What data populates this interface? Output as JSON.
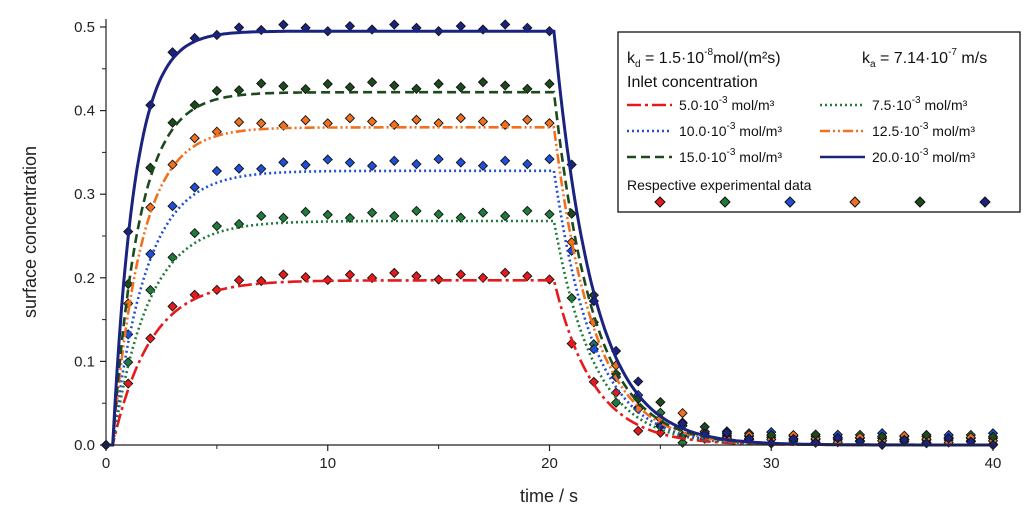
{
  "chart_data": {
    "type": "line",
    "xlabel": "time / s",
    "ylabel": "surface concentration",
    "xlim": [
      0,
      40
    ],
    "ylim": [
      0,
      0.5
    ],
    "xticks": [
      "0",
      "10",
      "20",
      "30",
      "40"
    ],
    "yticks": [
      "0.0",
      "0.1",
      "0.2",
      "0.3",
      "0.4",
      "0.5"
    ],
    "legend_placement": "top-right",
    "params": {
      "kd_prefix": "k",
      "kd_sub": "d",
      "kd_mid": " = 1.5·10",
      "kd_exp": "-8",
      "kd_unit": "mol/(m²s)",
      "ka_prefix": "k",
      "ka_sub": "a",
      "ka_mid": " = 7.14·10",
      "ka_exp": "-7",
      "ka_unit": " m/s"
    },
    "legend_title": "Inlet concentration",
    "experimental_label": "Respective experimental data",
    "pulse_end": 20.2,
    "series": [
      {
        "name": "5.0·10⁻³ mol/m³",
        "label_main": "5.0·10",
        "label_exp": "-3",
        "label_unit": " mol/m³",
        "color": "#e41a1c",
        "dash": "14,4,3,4",
        "plateau": 0.197,
        "tau_rise": 1.7,
        "tau_fall": 1.8,
        "exp_offset": 0.005
      },
      {
        "name": "7.5·10⁻³ mol/m³",
        "label_main": "7.5·10",
        "label_exp": "-3",
        "label_unit": " mol/m³",
        "color": "#1e7b3a",
        "dash": "2,3",
        "plateau": 0.268,
        "tau_rise": 1.6,
        "tau_fall": 1.8,
        "exp_offset": 0.008
      },
      {
        "name": "10.0·10⁻³ mol/m³",
        "label_main": "10.0·10",
        "label_exp": "-3",
        "label_unit": " mol/m³",
        "color": "#1f4fd6",
        "dash": "2,3",
        "plateau": 0.328,
        "tau_rise": 1.5,
        "tau_fall": 1.8,
        "exp_offset": 0.01
      },
      {
        "name": "12.5·10⁻³ mol/m³",
        "label_main": "12.5·10",
        "label_exp": "-3",
        "label_unit": " mol/m³",
        "color": "#f07020",
        "dash": "10,3,2,3,2,3",
        "plateau": 0.38,
        "tau_rise": 1.3,
        "tau_fall": 1.8,
        "exp_offset": 0.007
      },
      {
        "name": "15.0·10⁻³ mol/m³",
        "label_main": "15.0·10",
        "label_exp": "-3",
        "label_unit": " mol/m³",
        "color": "#1c4a1c",
        "dash": "9,5",
        "plateau": 0.422,
        "tau_rise": 1.2,
        "tau_fall": 1.8,
        "exp_offset": 0.008
      },
      {
        "name": "20.0·10⁻³ mol/m³",
        "label_main": "20.0·10",
        "label_exp": "-3",
        "label_unit": " mol/m³",
        "color": "#1a237e",
        "dash": "",
        "plateau": 0.495,
        "tau_rise": 1.0,
        "tau_fall": 1.8,
        "exp_offset": 0.004
      }
    ],
    "experimental_marker_colors": [
      "#e41a1c",
      "#1e7b3a",
      "#1f4fd6",
      "#f07020",
      "#1c4a1c",
      "#1a237e"
    ]
  }
}
